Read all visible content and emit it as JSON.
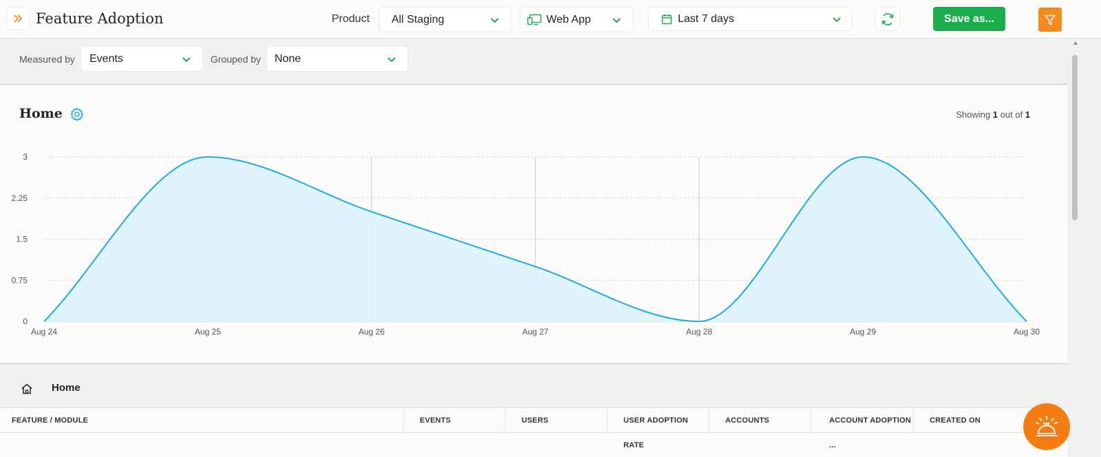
{
  "header": {
    "title": "Feature Adoption",
    "product_label": "Product",
    "product_value": "All Staging",
    "platform_value": "Web App",
    "date_value": "Last 7 days",
    "save_label": "Save as..."
  },
  "filters": {
    "measured_label": "Measured by",
    "measured_value": "Events",
    "grouped_label": "Grouped by",
    "grouped_value": "None"
  },
  "chart_card": {
    "title": "Home",
    "showing_prefix": "Showing",
    "showing_count": "1",
    "showing_mid": "out of",
    "showing_total": "1"
  },
  "chart_data": {
    "type": "area",
    "title": "",
    "xlabel": "",
    "ylabel": "",
    "x": [
      "Aug 24",
      "Aug 25",
      "Aug 26",
      "Aug 27",
      "Aug 28",
      "Aug 29",
      "Aug 30"
    ],
    "series": [
      {
        "values": [
          0,
          3,
          2,
          1,
          0,
          3,
          0
        ]
      }
    ],
    "y_ticks": [
      "0",
      "0.75",
      "1.5",
      "2.25",
      "3"
    ],
    "ylim": [
      0,
      3
    ],
    "grid": true,
    "colors": {
      "line": "#1fa9e6",
      "fill": "#dcf3fc"
    }
  },
  "breadcrumb": {
    "label": "Home"
  },
  "table": {
    "columns": [
      "FEATURE / MODULE",
      "EVENTS",
      "USERS",
      "USER ADOPTION RATE",
      "ACCOUNTS",
      "ACCOUNT ADOPTION ...",
      "CREATED ON"
    ]
  },
  "colors": {
    "accent_green": "#1aad4b",
    "accent_orange": "#f58a1f",
    "chevron_green": "#1aad4b"
  }
}
